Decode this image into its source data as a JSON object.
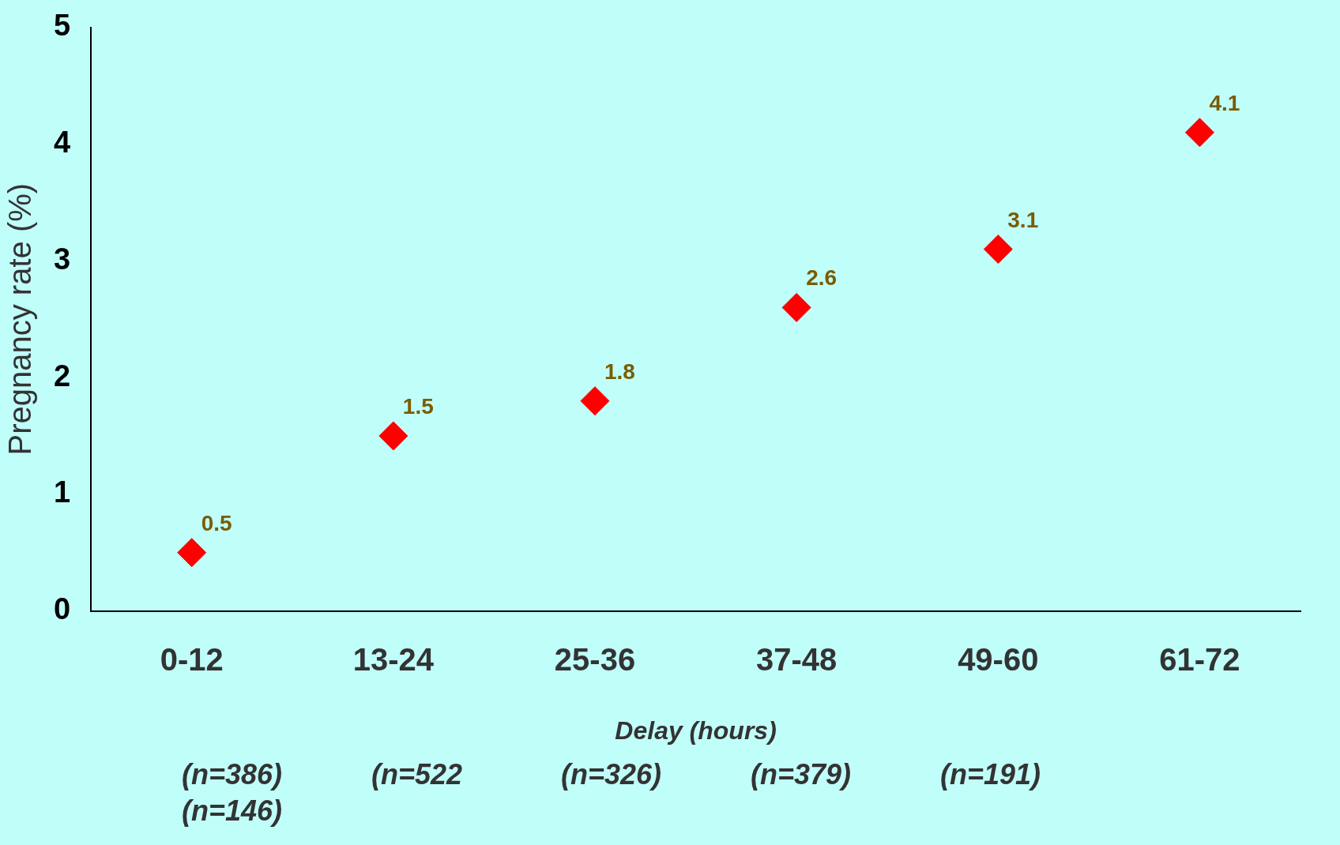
{
  "chart_data": {
    "type": "scatter",
    "xlabel": "Delay (hours)",
    "ylabel": "Pregnancy rate (%)",
    "categories": [
      "0-12",
      "13-24",
      "25-36",
      "37-48",
      "49-60",
      "61-72"
    ],
    "values": [
      0.5,
      1.5,
      1.8,
      2.6,
      3.1,
      4.1
    ],
    "color": "#ff0000",
    "ylim": [
      0,
      5
    ],
    "yticks": [
      0,
      1,
      2,
      3,
      4,
      5
    ],
    "grid": false,
    "legend": false,
    "marker": "diamond",
    "data_labels": true,
    "annotations": [
      "(n=386)",
      "(n=522",
      "(n=326)",
      "(n=379)",
      "(n=191)",
      "(n=146)"
    ]
  }
}
